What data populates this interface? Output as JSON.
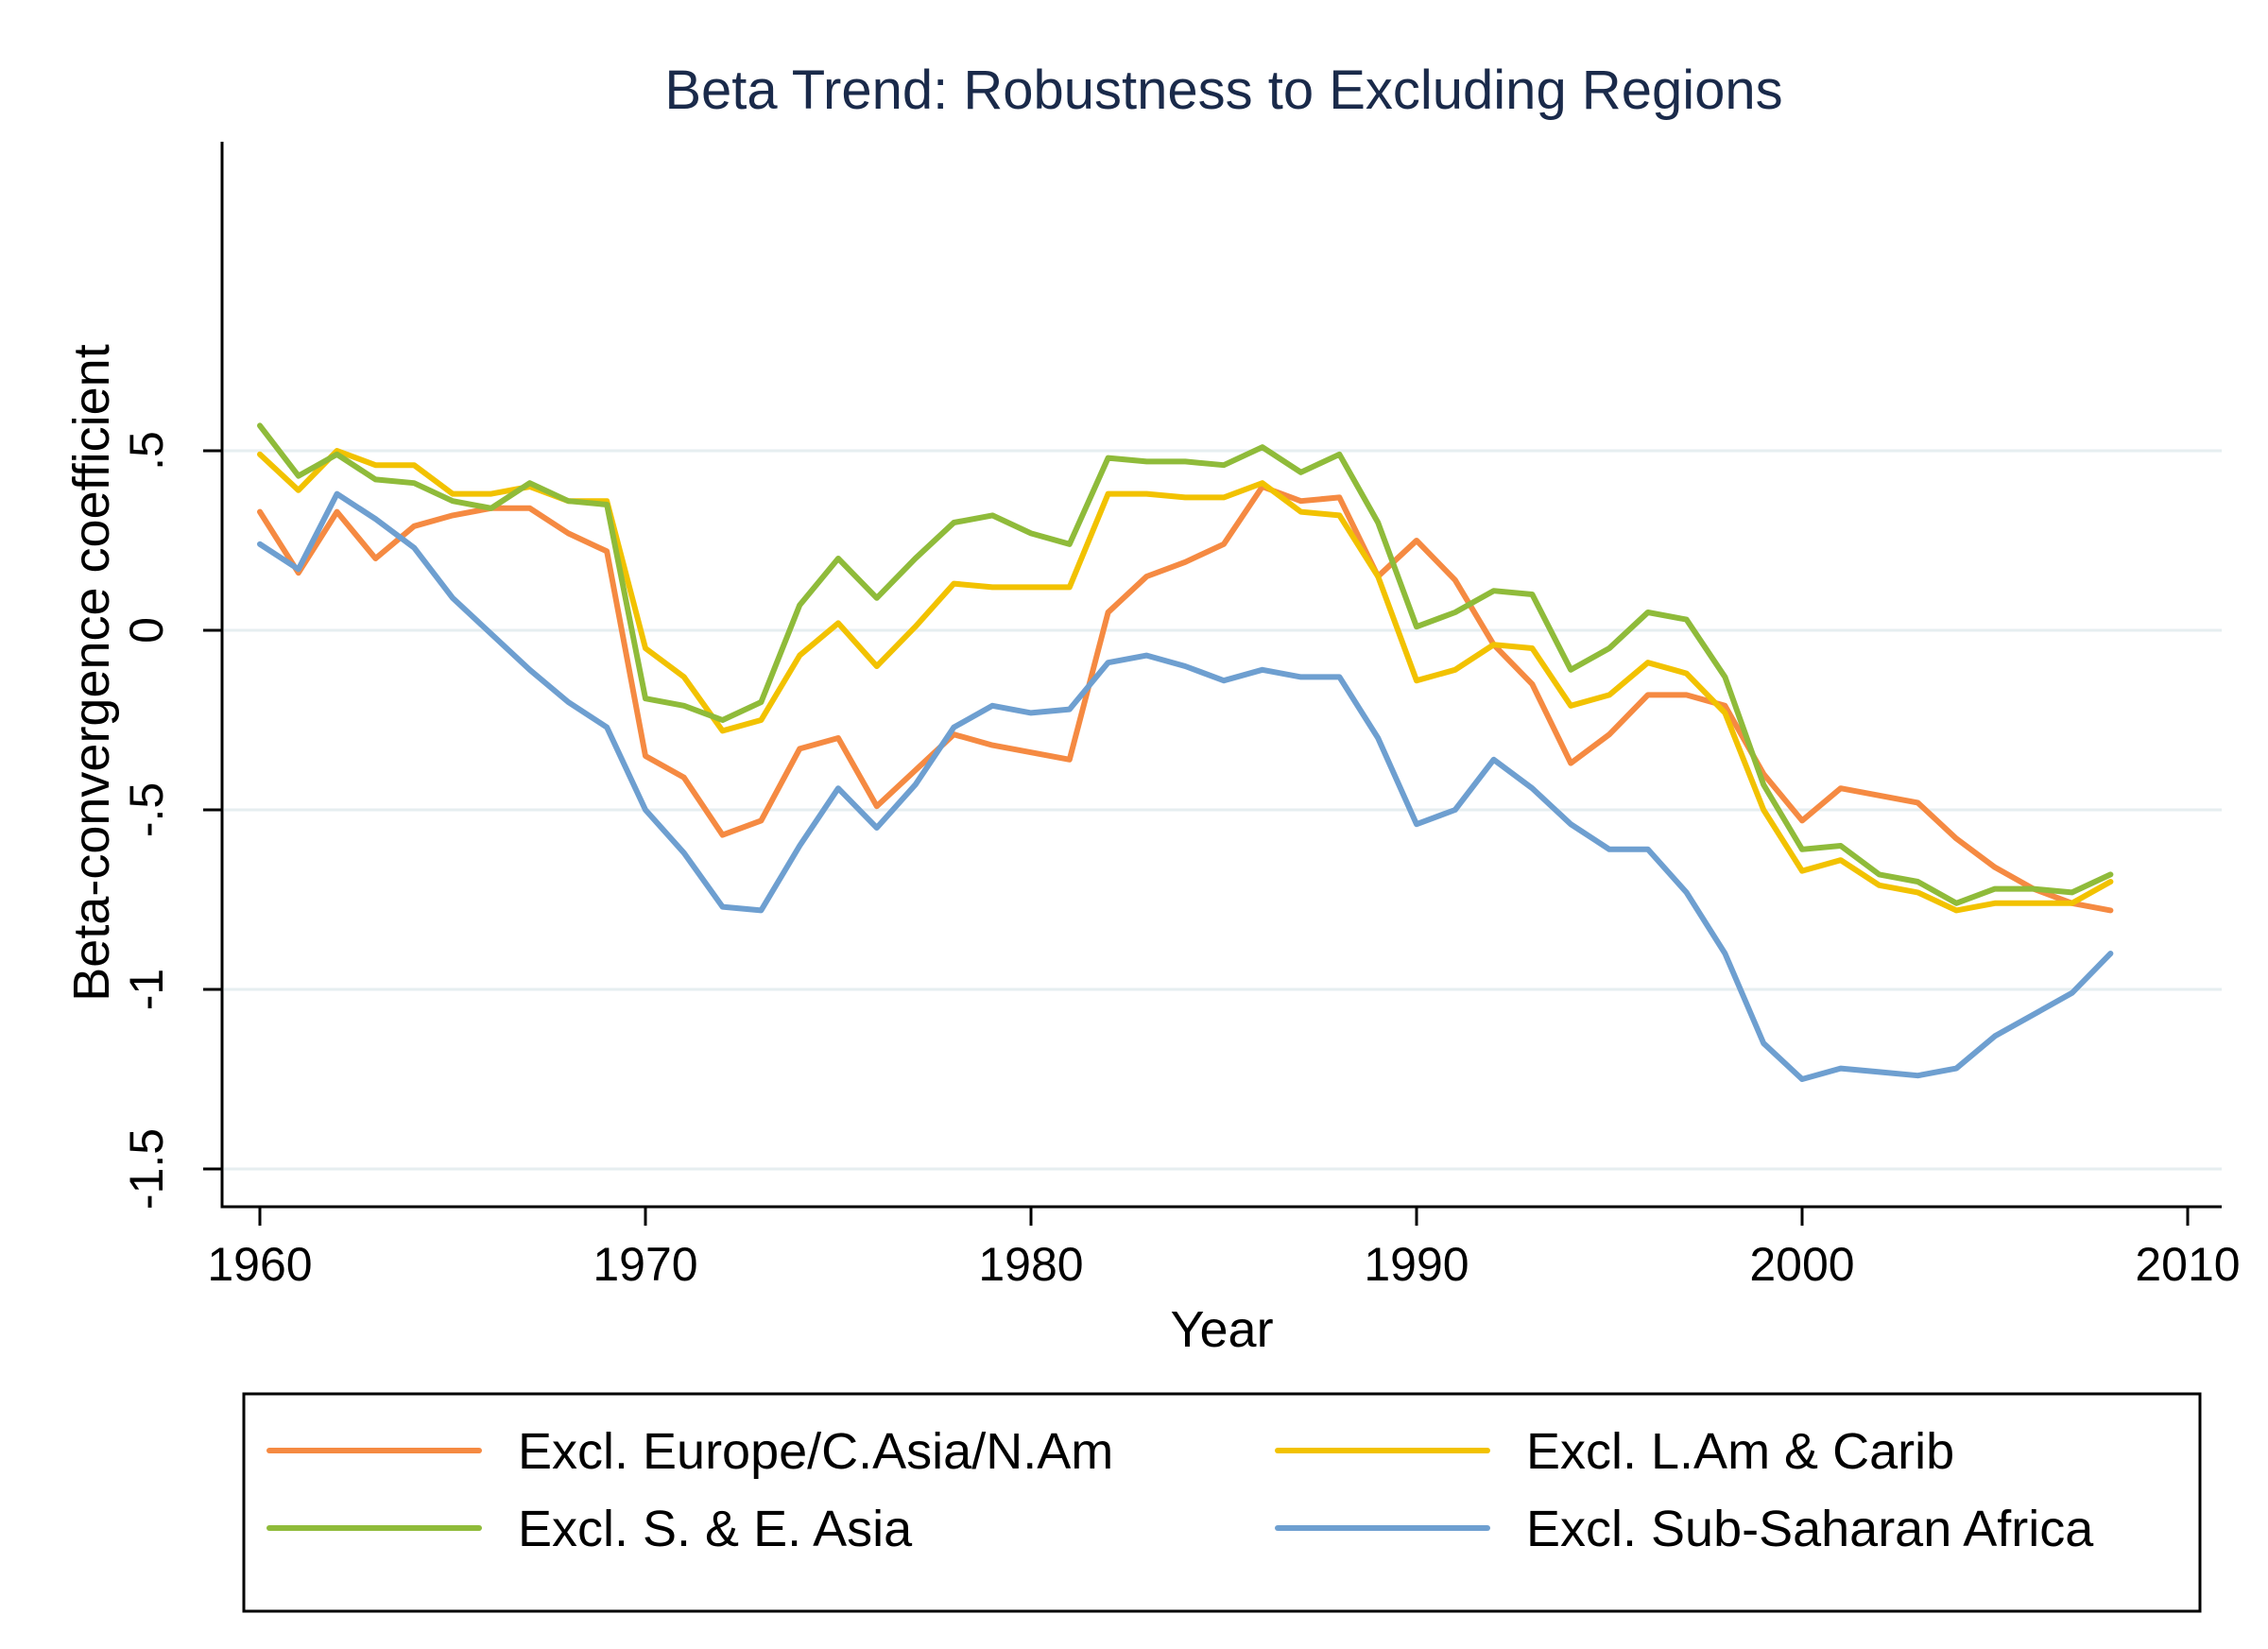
{
  "chart_data": {
    "type": "line",
    "title": "Beta Trend: Robustness to Excluding Regions",
    "xlabel": "Year",
    "ylabel": "Beta-convergence coefficient",
    "xlim": [
      1959,
      2010
    ],
    "ylim": [
      -1.58,
      0.65
    ],
    "xticks": [
      1960,
      1970,
      1980,
      1990,
      2000,
      2010
    ],
    "xtick_labels": [
      "1960",
      "1970",
      "1980",
      "1990",
      "2000",
      "2010"
    ],
    "yticks": [
      0.5,
      0,
      -0.5,
      -1,
      -1.5
    ],
    "ytick_labels": [
      ".5",
      "0",
      "-.5",
      "-1",
      "-1.5"
    ],
    "grid": true,
    "legend_position": "bottom",
    "x": [
      1960,
      1961,
      1962,
      1963,
      1964,
      1965,
      1966,
      1967,
      1968,
      1969,
      1970,
      1971,
      1972,
      1973,
      1974,
      1975,
      1976,
      1977,
      1978,
      1979,
      1980,
      1981,
      1982,
      1983,
      1984,
      1985,
      1986,
      1987,
      1988,
      1989,
      1990,
      1991,
      1992,
      1993,
      1994,
      1995,
      1996,
      1997,
      1998,
      1999,
      2000,
      2001,
      2002,
      2003,
      2004,
      2005,
      2006,
      2007,
      2008
    ],
    "series": [
      {
        "name": "Excl. Europe/C.Asia/N.Am",
        "color": "#f58a42",
        "values": [
          0.33,
          0.16,
          0.33,
          0.2,
          0.29,
          0.32,
          0.34,
          0.34,
          0.27,
          0.22,
          -0.35,
          -0.41,
          -0.57,
          -0.53,
          -0.33,
          -0.3,
          -0.49,
          -0.39,
          -0.29,
          -0.32,
          -0.34,
          -0.36,
          0.05,
          0.15,
          0.19,
          0.24,
          0.4,
          0.36,
          0.37,
          0.15,
          0.25,
          0.14,
          -0.04,
          -0.15,
          -0.37,
          -0.29,
          -0.18,
          -0.18,
          -0.21,
          -0.4,
          -0.53,
          -0.44,
          -0.46,
          -0.48,
          -0.58,
          -0.66,
          -0.72,
          -0.76,
          -0.78
        ]
      },
      {
        "name": "Excl. L.Am & Carib",
        "color": "#f2c200",
        "values": [
          0.49,
          0.39,
          0.5,
          0.46,
          0.46,
          0.38,
          0.38,
          0.4,
          0.36,
          0.36,
          -0.05,
          -0.13,
          -0.28,
          -0.25,
          -0.07,
          0.02,
          -0.1,
          0.01,
          0.13,
          0.12,
          0.12,
          0.12,
          0.38,
          0.38,
          0.37,
          0.37,
          0.41,
          0.33,
          0.32,
          0.15,
          -0.14,
          -0.11,
          -0.04,
          -0.05,
          -0.21,
          -0.18,
          -0.09,
          -0.12,
          -0.23,
          -0.5,
          -0.67,
          -0.64,
          -0.71,
          -0.73,
          -0.78,
          -0.76,
          -0.76,
          -0.76,
          -0.7
        ]
      },
      {
        "name": "Excl. S. & E. Asia",
        "color": "#8fbb3a",
        "values": [
          0.57,
          0.43,
          0.49,
          0.42,
          0.41,
          0.36,
          0.34,
          0.41,
          0.36,
          0.35,
          -0.19,
          -0.21,
          -0.25,
          -0.2,
          0.07,
          0.2,
          0.09,
          0.2,
          0.3,
          0.32,
          0.27,
          0.24,
          0.48,
          0.47,
          0.47,
          0.46,
          0.51,
          0.44,
          0.49,
          0.3,
          0.01,
          0.05,
          0.11,
          0.1,
          -0.11,
          -0.05,
          0.05,
          0.03,
          -0.13,
          -0.43,
          -0.61,
          -0.6,
          -0.68,
          -0.7,
          -0.76,
          -0.72,
          -0.72,
          -0.73,
          -0.68
        ]
      },
      {
        "name": "Excl. Sub-Saharan Africa",
        "color": "#6e9fd0",
        "values": [
          0.24,
          0.17,
          0.38,
          0.31,
          0.23,
          0.09,
          -0.01,
          -0.11,
          -0.2,
          -0.27,
          -0.5,
          -0.62,
          -0.77,
          -0.78,
          -0.6,
          -0.44,
          -0.55,
          -0.43,
          -0.27,
          -0.21,
          -0.23,
          -0.22,
          -0.09,
          -0.07,
          -0.1,
          -0.14,
          -0.11,
          -0.13,
          -0.13,
          -0.3,
          -0.54,
          -0.5,
          -0.36,
          -0.44,
          -0.54,
          -0.61,
          -0.61,
          -0.73,
          -0.9,
          -1.15,
          -1.25,
          -1.22,
          -1.23,
          -1.24,
          -1.22,
          -1.13,
          -1.07,
          -1.01,
          -0.9
        ]
      }
    ]
  }
}
